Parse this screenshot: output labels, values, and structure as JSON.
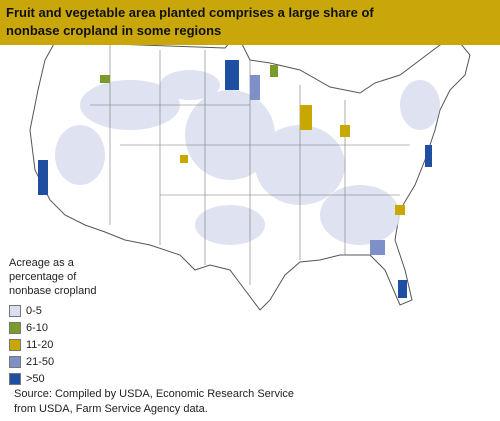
{
  "title": "Fruit and vegetable area planted comprises a large share of nonbase cropland in some regions",
  "legend": {
    "title": "Acreage as a percentage of nonbase cropland",
    "items": [
      {
        "label": "0-5",
        "color": "#dcdff0"
      },
      {
        "label": "6-10",
        "color": "#7a9a2a"
      },
      {
        "label": "11-20",
        "color": "#c8a800"
      },
      {
        "label": "21-50",
        "color": "#7f8fc8"
      },
      {
        "label": ">50",
        "color": "#1f4fa0"
      }
    ]
  },
  "source": "Source: Compiled by USDA, Economic Research Service from USDA, Farm Service Agency data."
}
